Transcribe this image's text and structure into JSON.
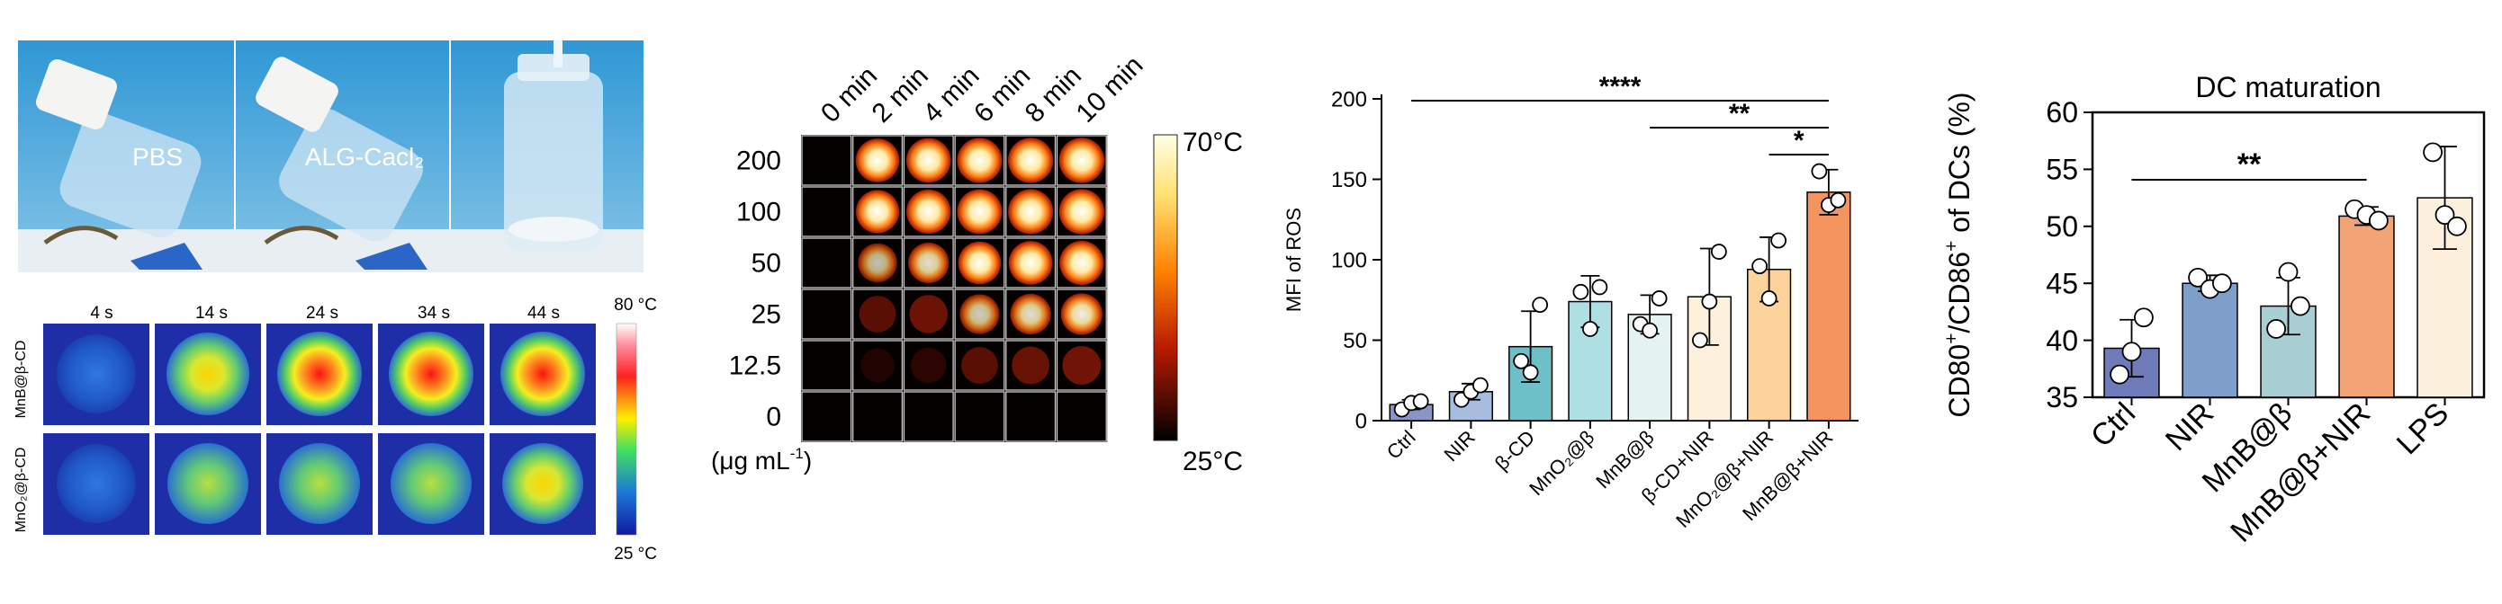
{
  "panel_a": {
    "photo_labels": [
      "PBS",
      "ALG-Cacl₂",
      ""
    ],
    "thermal": {
      "times": [
        "4 s",
        "14 s",
        "24 s",
        "34 s",
        "44 s"
      ],
      "rows": [
        "MnB@β-CD",
        "MnO₂@β-CD"
      ],
      "scale_max": "80 °C",
      "scale_min": "25 °C"
    }
  },
  "chart_data": [
    {
      "type": "heatmap",
      "title": "",
      "columns": [
        "0 min",
        "2 min",
        "4 min",
        "6 min",
        "8 min",
        "10 min"
      ],
      "rows": [
        "200",
        "100",
        "50",
        "25",
        "12.5",
        "0"
      ],
      "row_unit_prefix": "(μg mL",
      "row_unit_exp": "-1",
      "row_unit_suffix": ")",
      "colorbar_max": "70°C",
      "colorbar_min": "25°C",
      "intensity": [
        [
          0,
          0.85,
          0.92,
          0.95,
          0.97,
          0.98
        ],
        [
          0,
          0.82,
          0.9,
          0.94,
          0.96,
          0.97
        ],
        [
          0,
          0.5,
          0.62,
          0.78,
          0.86,
          0.9
        ],
        [
          0,
          0.3,
          0.42,
          0.55,
          0.62,
          0.68
        ],
        [
          0,
          0.08,
          0.2,
          0.3,
          0.38,
          0.45
        ],
        [
          0,
          0,
          0,
          0,
          0,
          0
        ]
      ]
    },
    {
      "type": "bar",
      "title": "",
      "categories": [
        "Ctrl",
        "NIR",
        "β-CD",
        "MnO₂@β",
        "MnB@β",
        "β-CD+NIR",
        "MnO₂@β+NIR",
        "MnB@β+NIR"
      ],
      "values": [
        10,
        18,
        46,
        74,
        66,
        77,
        94,
        142
      ],
      "errors": [
        3,
        5,
        22,
        16,
        12,
        30,
        20,
        14
      ],
      "points": [
        [
          7,
          11,
          12
        ],
        [
          13,
          18,
          22
        ],
        [
          37,
          30,
          72
        ],
        [
          80,
          57,
          83
        ],
        [
          60,
          56,
          76
        ],
        [
          50,
          74,
          105
        ],
        [
          96,
          76,
          112
        ],
        [
          155,
          134,
          137
        ]
      ],
      "colors": [
        "#8a95c6",
        "#a6bde0",
        "#6dc0c8",
        "#aedfe2",
        "#e4f2f1",
        "#fdf0dc",
        "#fbd39b",
        "#f3935e"
      ],
      "ylabel": "MFI of ROS",
      "yticks": [
        0,
        50,
        100,
        150,
        200
      ],
      "ylim": [
        0,
        200
      ],
      "significance": [
        {
          "from": 0,
          "to": 7,
          "label": "****"
        },
        {
          "from": 4,
          "to": 7,
          "label": "**"
        },
        {
          "from": 6,
          "to": 7,
          "label": "*"
        }
      ]
    },
    {
      "type": "bar",
      "title": "DC maturation",
      "categories": [
        "Ctrl",
        "NIR",
        "MnB@β",
        "MnB@β+NIR",
        "LPS"
      ],
      "values": [
        39.3,
        45.0,
        43.0,
        50.9,
        52.5
      ],
      "errors": [
        2.5,
        0.7,
        2.5,
        0.8,
        4.5
      ],
      "points": [
        [
          37,
          39,
          42
        ],
        [
          45.5,
          44.5,
          45
        ],
        [
          41,
          46,
          43
        ],
        [
          51.5,
          51,
          50.5
        ],
        [
          56.5,
          51,
          50
        ]
      ],
      "colors": [
        "#6e7bb8",
        "#7d9fc9",
        "#a8d0d4",
        "#f2a476",
        "#fcefdc"
      ],
      "ylabel_main": "CD80",
      "ylabel_sup1": "+",
      "ylabel_mid": "/CD86",
      "ylabel_sup2": "+",
      "ylabel_end": " of DCs (%)",
      "yticks": [
        35,
        40,
        45,
        50,
        55,
        60
      ],
      "ylim": [
        35,
        60
      ],
      "significance": [
        {
          "from": 0,
          "to": 3,
          "label": "**"
        }
      ]
    }
  ]
}
